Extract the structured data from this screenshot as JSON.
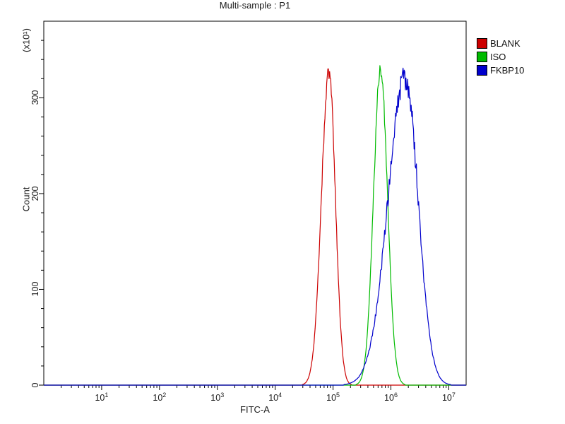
{
  "chart_data": {
    "type": "line",
    "title": "Multi-sample : P1",
    "xlabel": "FITC-A",
    "ylabel": "Count",
    "y_unit_label": "(x10¹)",
    "x_scale": "log",
    "x_log_range": [
      0,
      7.3
    ],
    "x_tick_exponents": [
      1,
      2,
      3,
      4,
      5,
      6,
      7
    ],
    "ylim": [
      0,
      380
    ],
    "y_ticks": [
      0,
      100,
      200,
      300
    ],
    "grid": false,
    "legend_position": "top-right-outside",
    "series": [
      {
        "name": "BLANK",
        "color": "#cc0000",
        "peak_x": 85000,
        "peak_log10_x": 4.93,
        "peak_y": 328,
        "sigma_left_decades": 0.13,
        "sigma_right_decades": 0.11,
        "noise_amp": 0.025
      },
      {
        "name": "ISO",
        "color": "#00bb00",
        "peak_x": 660000,
        "peak_log10_x": 5.82,
        "peak_y": 330,
        "sigma_left_decades": 0.12,
        "sigma_right_decades": 0.12,
        "noise_amp": 0.025
      },
      {
        "name": "FKBP10",
        "color": "#0000cc",
        "peak_x": 1800000,
        "peak_log10_x": 6.25,
        "peak_y": 322,
        "sigma_left_decades": 0.3,
        "sigma_right_decades": 0.22,
        "noise_amp": 0.045
      }
    ]
  }
}
